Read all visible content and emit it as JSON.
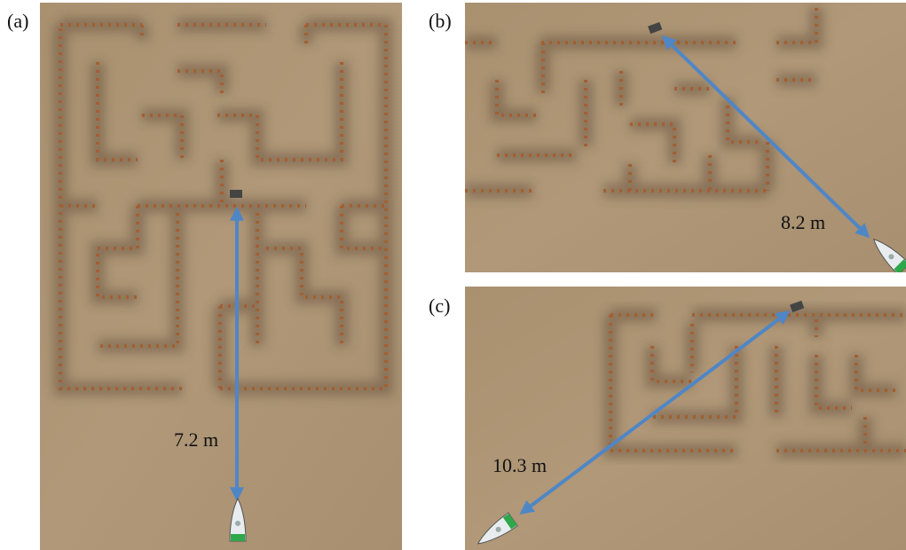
{
  "panels": [
    {
      "label": "(a)",
      "distance": "7.2 m"
    },
    {
      "label": "(b)",
      "distance": "8.2 m"
    },
    {
      "label": "(c)",
      "distance": "10.3 m"
    }
  ]
}
